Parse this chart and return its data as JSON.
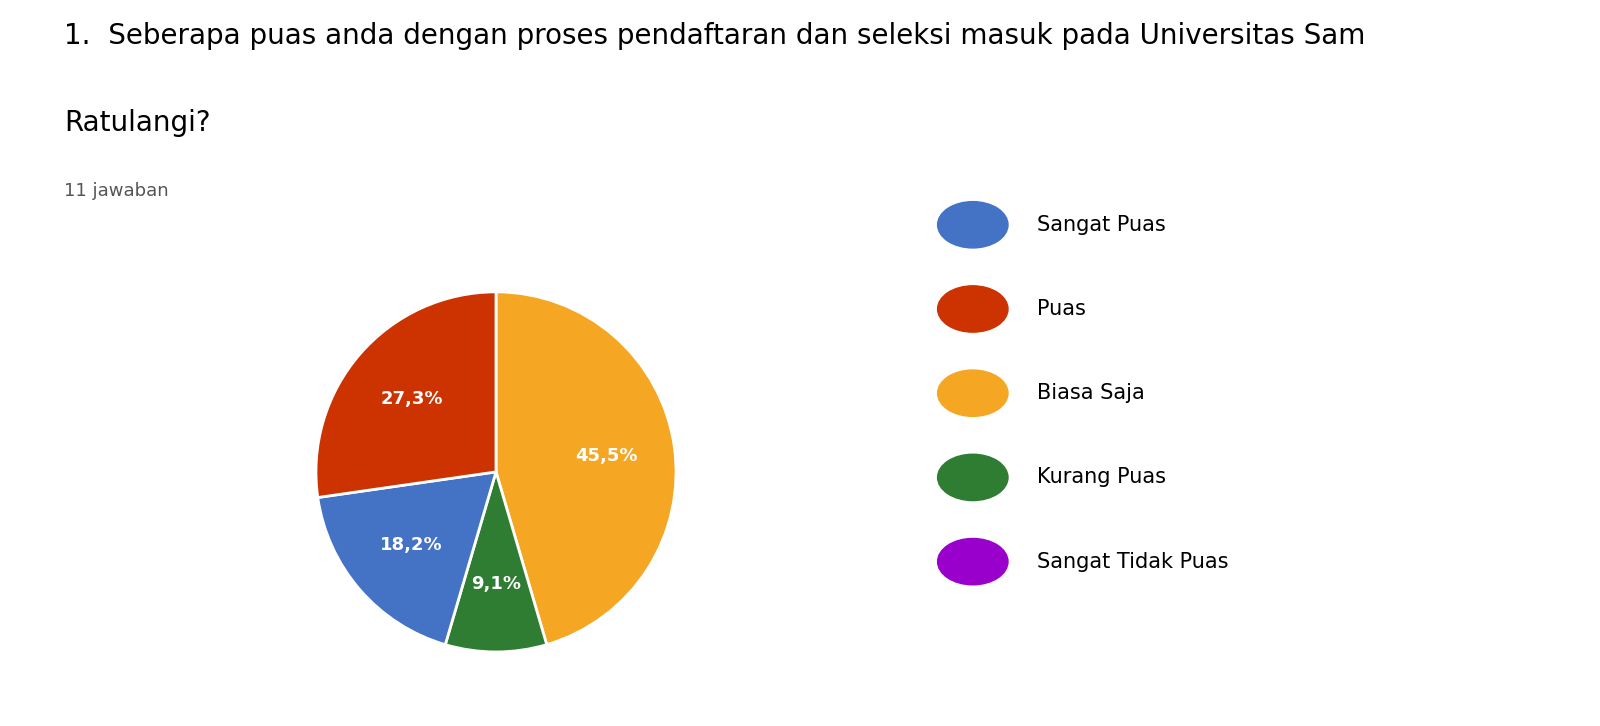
{
  "title_line1": "1.  Seberapa puas anda dengan proses pendaftaran dan seleksi masuk pada Universitas Sam",
  "title_line2": "Ratulangi?",
  "subtitle": "11 jawaban",
  "labels": [
    "Sangat Puas",
    "Puas",
    "Biasa Saja",
    "Kurang Puas",
    "Sangat Tidak Puas"
  ],
  "values": [
    18.2,
    27.3,
    45.5,
    9.1,
    0.0
  ],
  "colors": [
    "#4472c4",
    "#cc3300",
    "#f5a623",
    "#2e7d32",
    "#9900cc"
  ],
  "background_color": "#ffffff",
  "pct_labels": [
    "18,2%",
    "27,3%",
    "45,5%",
    "9,1%",
    ""
  ],
  "title_fontsize": 20,
  "subtitle_fontsize": 13,
  "legend_fontsize": 15
}
